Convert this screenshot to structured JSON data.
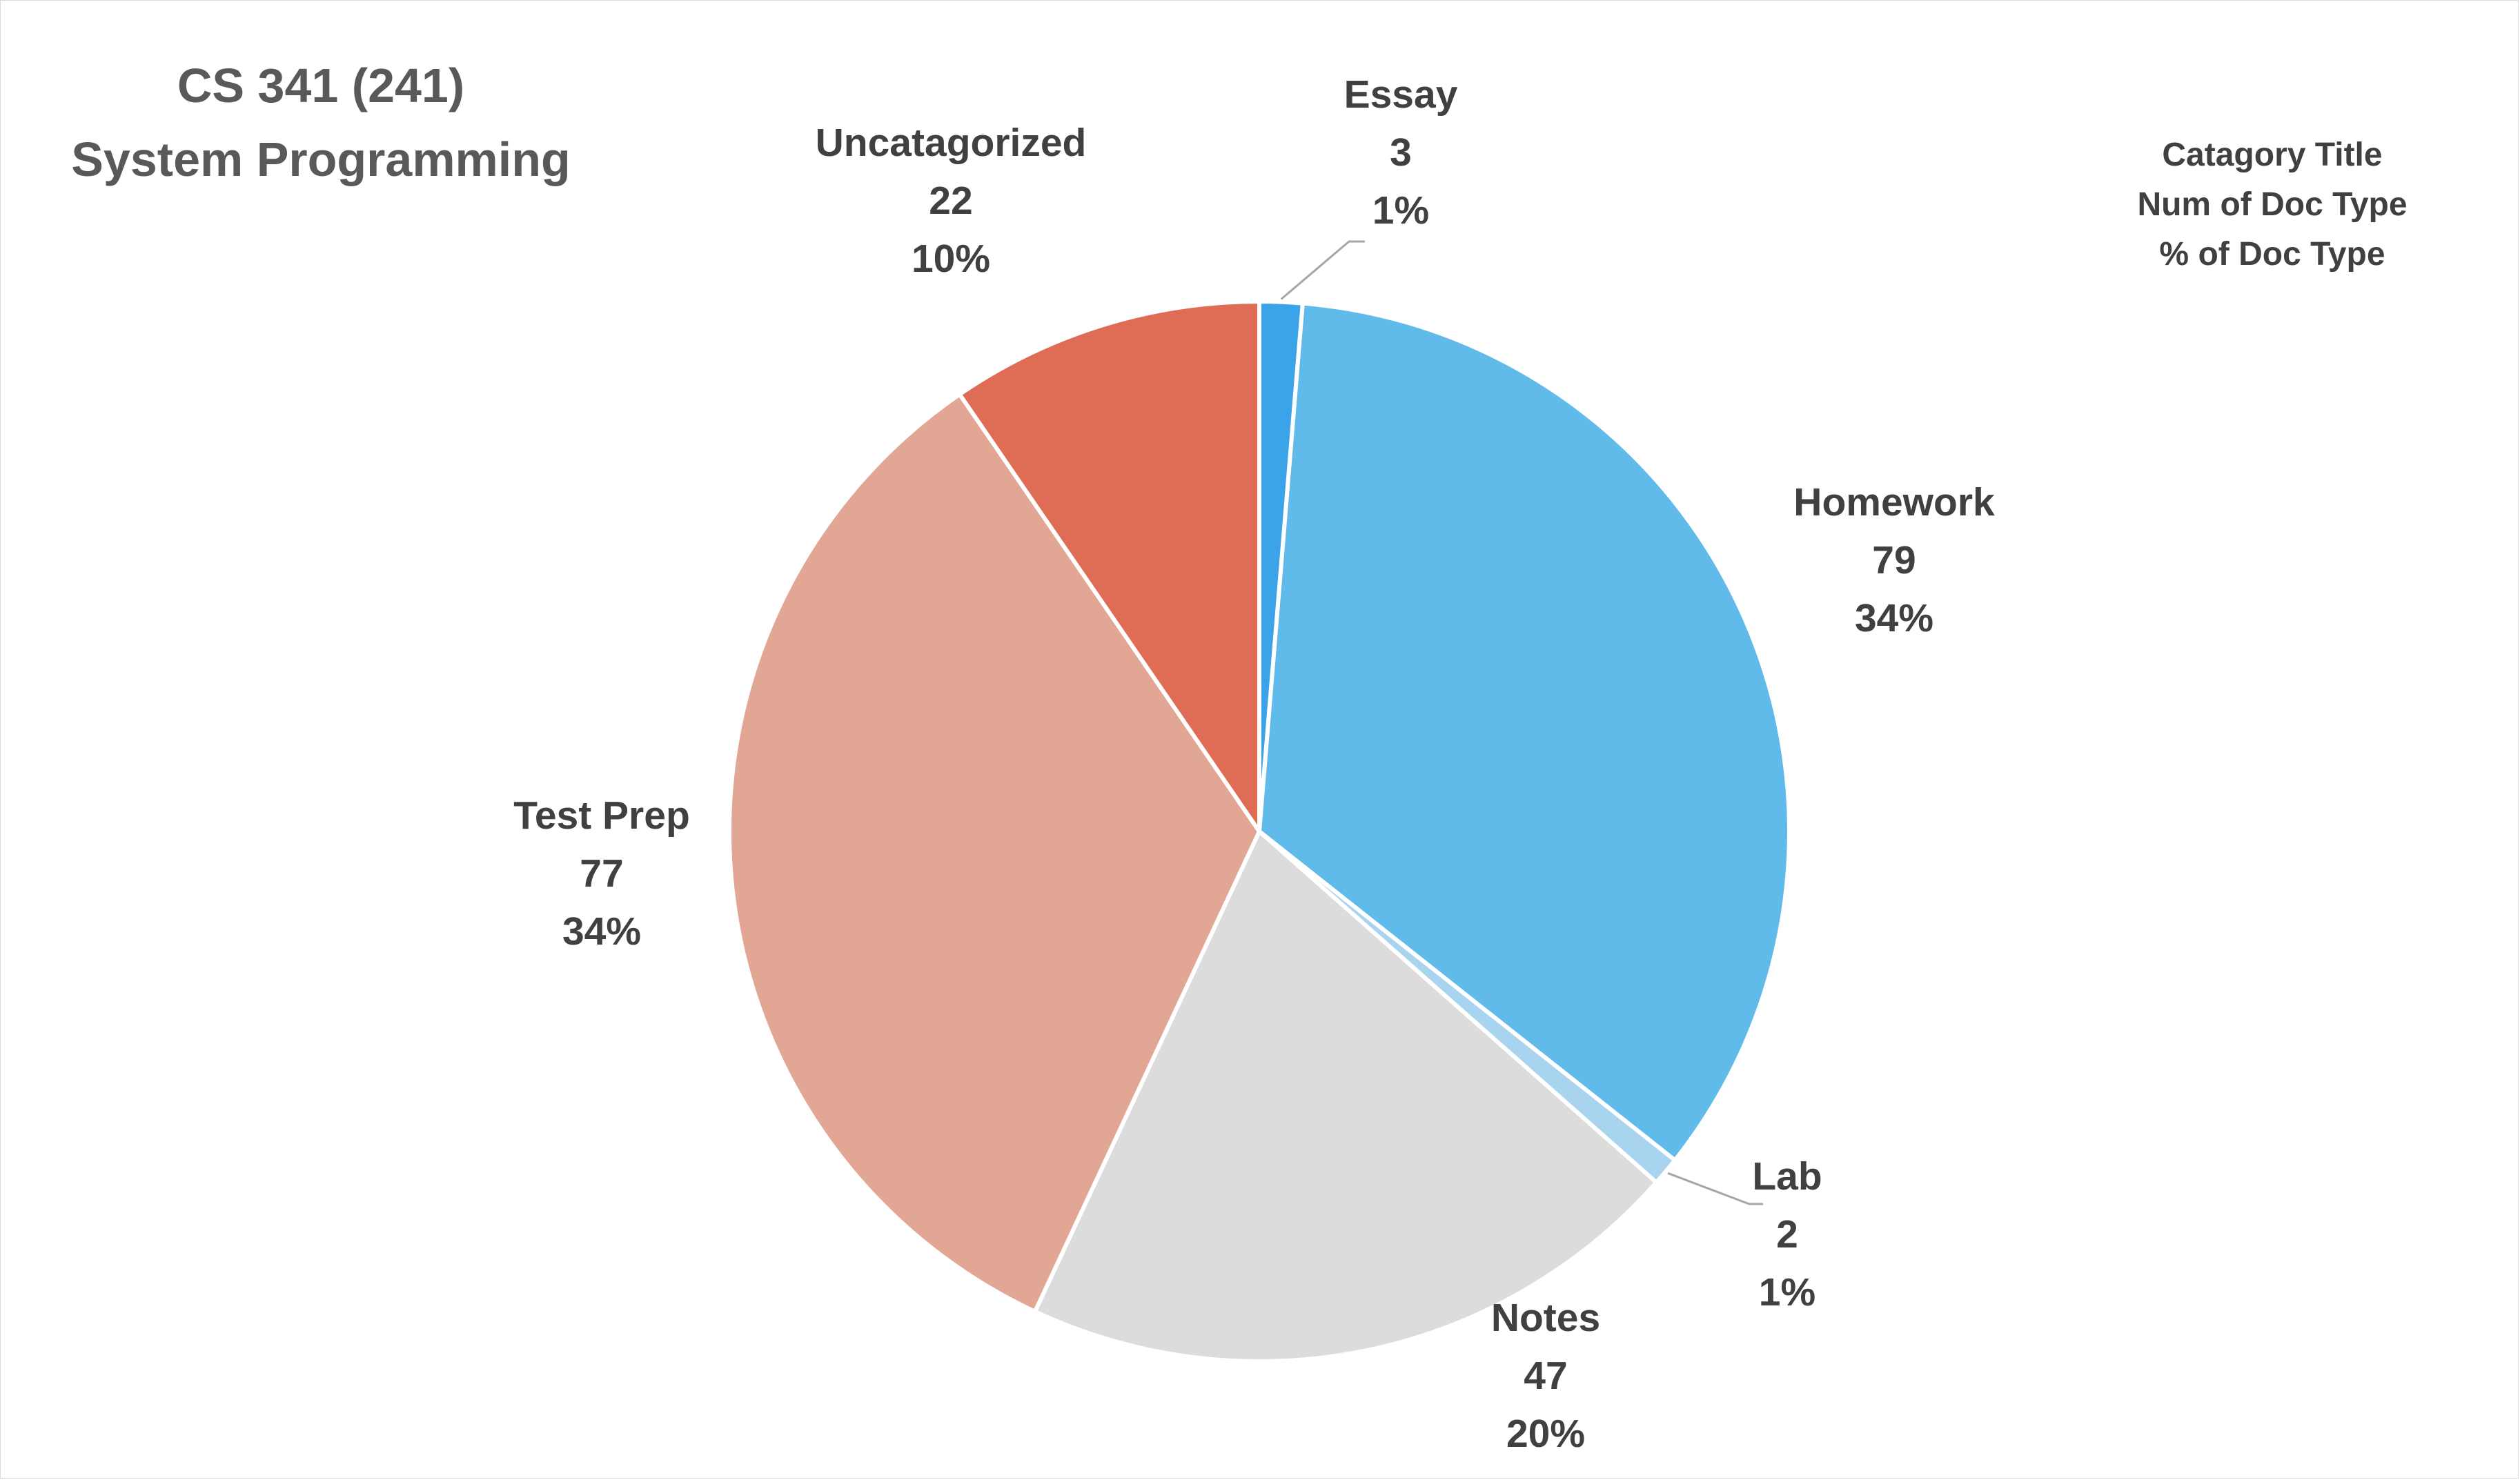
{
  "chart_data": {
    "type": "pie",
    "title_lines": [
      "CS 341 (241)",
      "System Programming"
    ],
    "legend_lines": [
      "Catagory Title",
      "Num of Doc Type",
      "% of Doc Type"
    ],
    "slices": [
      {
        "name": "Essay",
        "value": 3,
        "percent_label": "1%",
        "color": "#3BA3E8"
      },
      {
        "name": "Homework",
        "value": 79,
        "percent_label": "34%",
        "color": "#61BBEA"
      },
      {
        "name": "Lab",
        "value": 2,
        "percent_label": "1%",
        "color": "#A9D4EF"
      },
      {
        "name": "Notes",
        "value": 47,
        "percent_label": "20%",
        "color": "#DCDCDC"
      },
      {
        "name": "Test Prep",
        "value": 77,
        "percent_label": "34%",
        "color": "#E2A794"
      },
      {
        "name": "Uncatagorized",
        "value": 22,
        "percent_label": "10%",
        "color": "#DF6C55"
      }
    ]
  }
}
